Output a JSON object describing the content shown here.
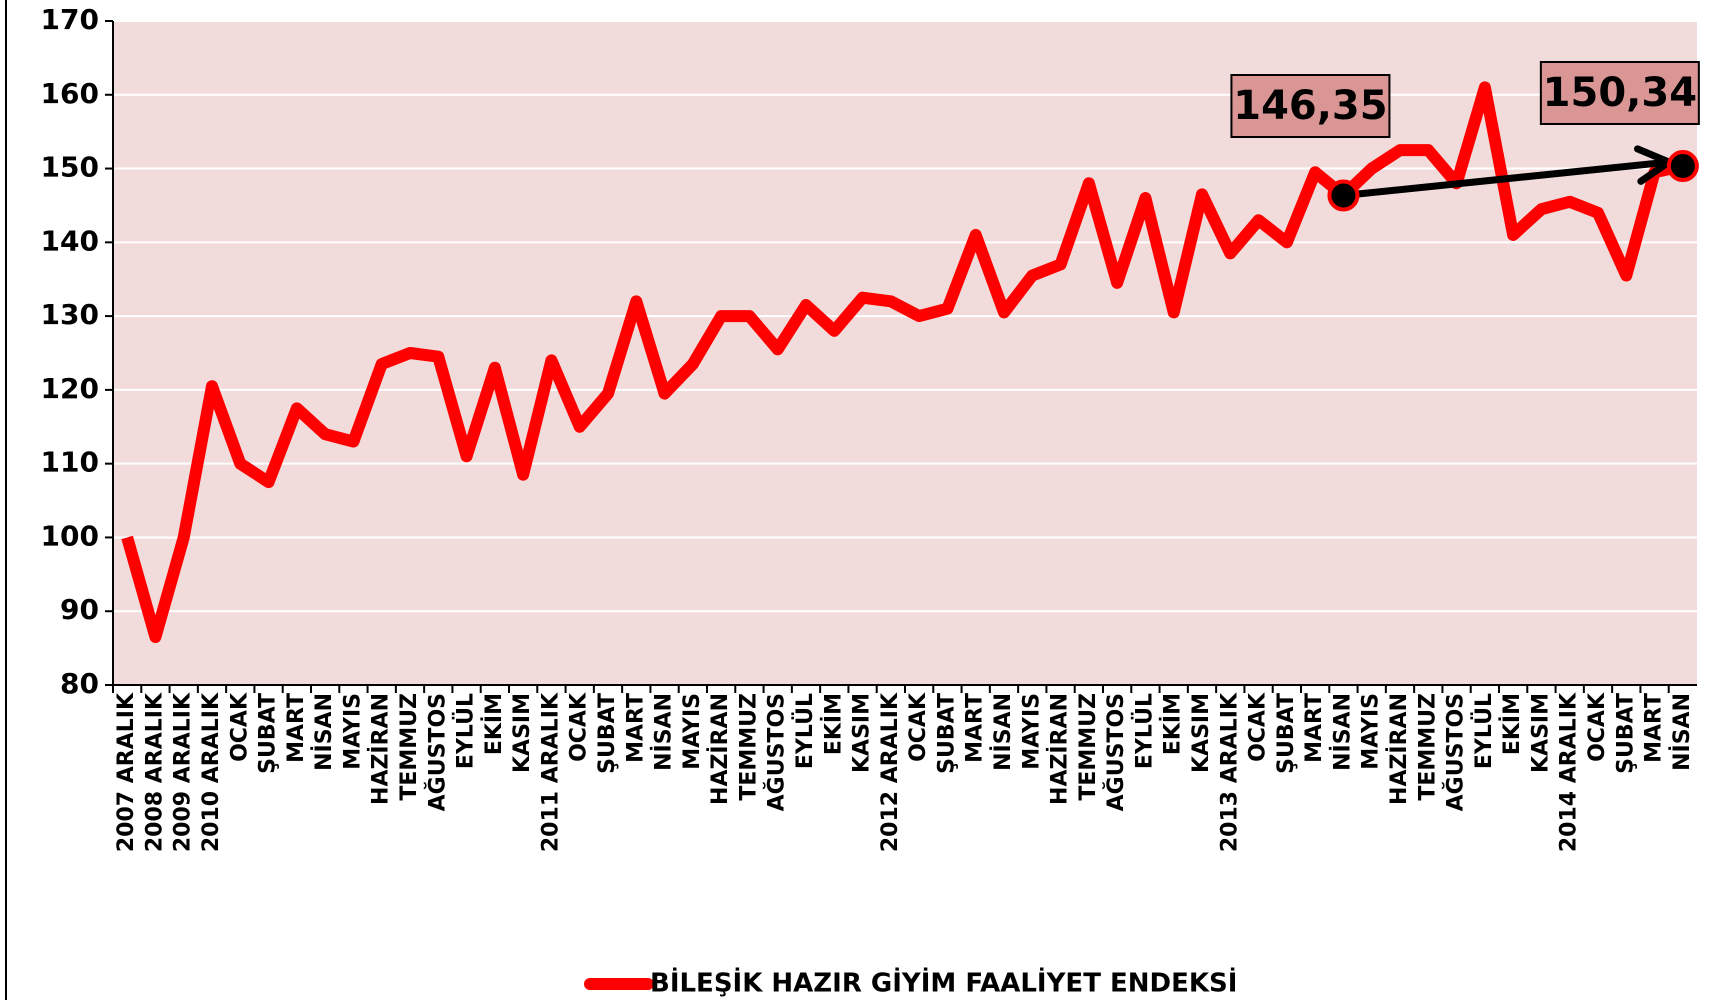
{
  "chart_data": {
    "type": "line",
    "categories": [
      "2007 ARALIK",
      "2008 ARALIK",
      "2009 ARALIK",
      "2010 ARALIK",
      "OCAK",
      "ŞUBAT",
      "MART",
      "NİSAN",
      "MAYIS",
      "HAZİRAN",
      "TEMMUZ",
      "AĞUSTOS",
      "EYLÜL",
      "EKİM",
      "KASIM",
      "2011 ARALIK",
      "OCAK",
      "ŞUBAT",
      "MART",
      "NİSAN",
      "MAYIS",
      "HAZİRAN",
      "TEMMUZ",
      "AĞUSTOS",
      "EYLÜL",
      "EKİM",
      "KASIM",
      "2012 ARALIK",
      "OCAK",
      "ŞUBAT",
      "MART",
      "NİSAN",
      "MAYIS",
      "HAZİRAN",
      "TEMMUZ",
      "AĞUSTOS",
      "EYLÜL",
      "EKİM",
      "KASIM",
      "2013 ARALIK",
      "OCAK",
      "ŞUBAT",
      "MART",
      "NİSAN",
      "MAYIS",
      "HAZİRAN",
      "TEMMUZ",
      "AĞUSTOS",
      "EYLÜL",
      "EKİM",
      "KASIM",
      "2014 ARALIK",
      "OCAK",
      "ŞUBAT",
      "MART",
      "NİSAN"
    ],
    "series": [
      {
        "name": "BİLEŞİK HAZIR GİYİM FAALİYET ENDEKSİ",
        "color": "#ff0000",
        "values": [
          100,
          86.5,
          100,
          120.5,
          110,
          107.5,
          117.5,
          114,
          113,
          123.5,
          125,
          124.5,
          111,
          123,
          108.5,
          124,
          115,
          119.5,
          132,
          119.5,
          123.5,
          130,
          130,
          125.5,
          131.5,
          128,
          132.5,
          132,
          130,
          131,
          141,
          130.5,
          135.5,
          137,
          148,
          134.5,
          146,
          130.5,
          146.5,
          138.5,
          143,
          140,
          149.5,
          146.35,
          150,
          152.5,
          152.5,
          148,
          161,
          141,
          144.5,
          145.5,
          144,
          135.5,
          149.5,
          150.34
        ],
        "value_labels": [
          null,
          null,
          null,
          null,
          null,
          null,
          null,
          null,
          null,
          null,
          null,
          null,
          null,
          null,
          null,
          null,
          null,
          null,
          null,
          null,
          null,
          null,
          null,
          null,
          null,
          null,
          null,
          null,
          null,
          null,
          null,
          null,
          null,
          null,
          null,
          null,
          null,
          null,
          null,
          null,
          null,
          null,
          null,
          "146,35",
          null,
          null,
          null,
          null,
          null,
          null,
          null,
          null,
          null,
          null,
          null,
          "150,34"
        ]
      }
    ],
    "ylim": [
      80,
      170
    ],
    "yticks": [
      80,
      90,
      100,
      110,
      120,
      130,
      140,
      150,
      160,
      170
    ],
    "grid": true,
    "plot_background": "#f2dcdb",
    "label_box_color": "#d99694",
    "legend": "bottom"
  }
}
